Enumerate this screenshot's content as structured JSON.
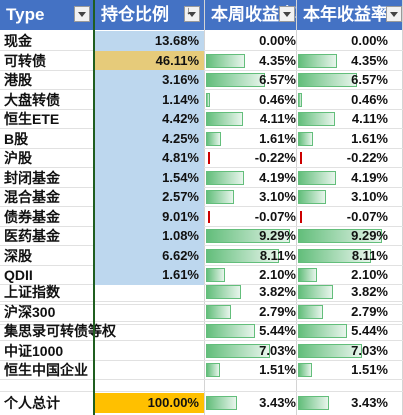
{
  "headers": {
    "type": "Type",
    "ratio": "持仓比例",
    "week": "本周收益率",
    "year": "本年收益率"
  },
  "colors": {
    "header_bg": "#4472c4",
    "ratio_bg": "#bdd7ee",
    "ratio_highlight": "#e6cb7a",
    "total_highlight": "#ffc000",
    "bar_green": "#63be7b"
  },
  "rows": [
    {
      "name": "现金",
      "ratio": "13.68%",
      "week": "0.00%",
      "year": "0.00%",
      "week_num": 0.0,
      "year_num": 0.0
    },
    {
      "name": "可转债",
      "ratio": "46.11%",
      "week": "4.35%",
      "year": "4.35%",
      "week_num": 4.35,
      "year_num": 4.35,
      "highlight": true
    },
    {
      "name": "港股",
      "ratio": "3.16%",
      "week": "6.57%",
      "year": "6.57%",
      "week_num": 6.57,
      "year_num": 6.57
    },
    {
      "name": "大盘转债",
      "ratio": "1.14%",
      "week": "0.46%",
      "year": "0.46%",
      "week_num": 0.46,
      "year_num": 0.46
    },
    {
      "name": "恒生ETE",
      "ratio": "4.42%",
      "week": "4.11%",
      "year": "4.11%",
      "week_num": 4.11,
      "year_num": 4.11
    },
    {
      "name": "B股",
      "ratio": "4.25%",
      "week": "1.61%",
      "year": "1.61%",
      "week_num": 1.61,
      "year_num": 1.61
    },
    {
      "name": "沪股",
      "ratio": "4.81%",
      "week": "-0.22%",
      "year": "-0.22%",
      "week_num": -0.22,
      "year_num": -0.22
    },
    {
      "name": "封闭基金",
      "ratio": "1.54%",
      "week": "4.19%",
      "year": "4.19%",
      "week_num": 4.19,
      "year_num": 4.19
    },
    {
      "name": "混合基金",
      "ratio": "2.57%",
      "week": "3.10%",
      "year": "3.10%",
      "week_num": 3.1,
      "year_num": 3.1
    },
    {
      "name": "债券基金",
      "ratio": "9.01%",
      "week": "-0.07%",
      "year": "-0.07%",
      "week_num": -0.07,
      "year_num": -0.07
    },
    {
      "name": "医药基金",
      "ratio": "1.08%",
      "week": "9.29%",
      "year": "9.29%",
      "week_num": 9.29,
      "year_num": 9.29
    },
    {
      "name": "深股",
      "ratio": "6.62%",
      "week": "8.11%",
      "year": "8.11%",
      "week_num": 8.11,
      "year_num": 8.11
    },
    {
      "name": "QDII",
      "ratio": "1.61%",
      "week": "2.10%",
      "year": "2.10%",
      "week_num": 2.1,
      "year_num": 2.1
    }
  ],
  "indices": [
    {
      "name": "上证指数",
      "week": "3.82%",
      "year": "3.82%",
      "week_num": 3.82,
      "year_num": 3.82
    },
    {
      "name": "沪深300",
      "week": "2.79%",
      "year": "2.79%",
      "week_num": 2.79,
      "year_num": 2.79
    },
    {
      "name": "集思录可转债等权",
      "week": "5.44%",
      "year": "5.44%",
      "week_num": 5.44,
      "year_num": 5.44
    },
    {
      "name": "中证1000",
      "week": "7.03%",
      "year": "7.03%",
      "week_num": 7.03,
      "year_num": 7.03
    },
    {
      "name": "恒生中国企业",
      "week": "1.51%",
      "year": "1.51%",
      "week_num": 1.51,
      "year_num": 1.51
    }
  ],
  "total": {
    "name": "个人总计",
    "ratio": "100.00%",
    "week": "3.43%",
    "year": "3.43%",
    "week_num": 3.43,
    "year_num": 3.43
  },
  "bar_max": 9.29
}
